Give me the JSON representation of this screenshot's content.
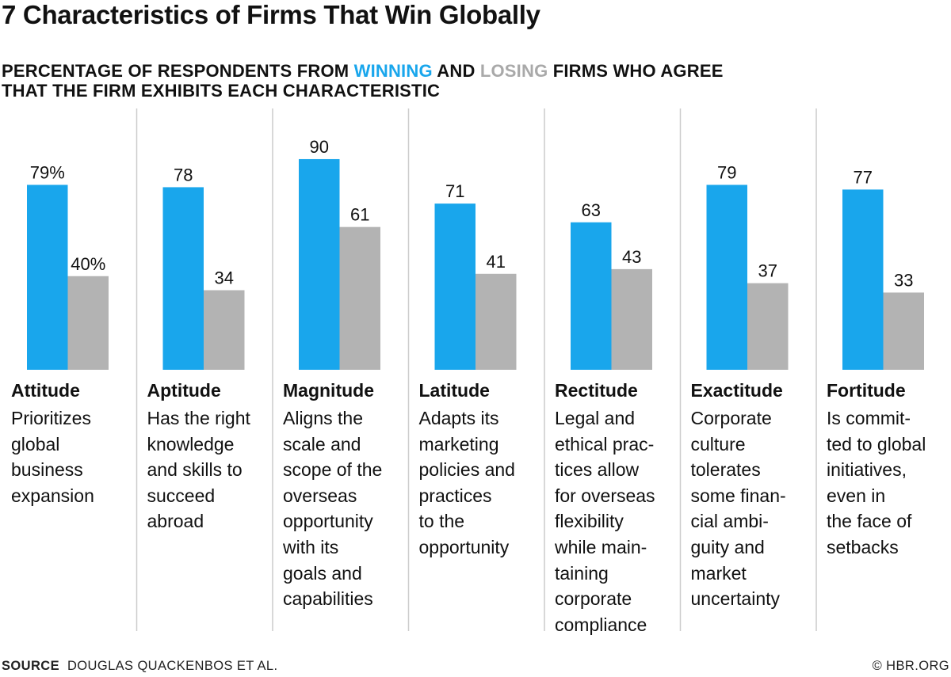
{
  "title": "7 Characteristics of Firms That Win Globally",
  "subtitle": {
    "part1": "PERCENTAGE OF RESPONDENTS FROM ",
    "winning": "WINNING",
    "part2": " AND ",
    "losing": "LOSING",
    "part3": " FIRMS WHO AGREE",
    "line2": "THAT THE FIRM EXHIBITS EACH CHARACTERISTIC"
  },
  "colors": {
    "winning": "#19a6ec",
    "losing": "#b3b3b3",
    "divider": "#cccccc"
  },
  "chart_data": {
    "type": "bar",
    "categories": [
      "Attitude",
      "Aptitude",
      "Magnitude",
      "Latitude",
      "Rectitude",
      "Exactitude",
      "Fortitude"
    ],
    "series": [
      {
        "name": "WINNING",
        "values": [
          79,
          78,
          90,
          71,
          63,
          79,
          77
        ]
      },
      {
        "name": "LOSING",
        "values": [
          40,
          34,
          61,
          41,
          43,
          37,
          33
        ]
      }
    ],
    "value_labels": {
      "winning": [
        "79%",
        "78",
        "90",
        "71",
        "63",
        "79",
        "77"
      ],
      "losing": [
        "40%",
        "34",
        "61",
        "41",
        "43",
        "37",
        "33"
      ]
    },
    "descriptions": [
      "Prioritizes\nglobal\nbusiness\nexpansion",
      "Has the right\nknowledge\nand skills to\nsucceed\nabroad",
      "Aligns the\nscale and\nscope of the\noverseas\nopportunity\nwith its\ngoals and\ncapabilities",
      "Adapts its\nmarketing\npolicies and\npractices\nto the\nopportunity",
      "Legal and\nethical prac-\ntices allow\nfor overseas\nflexibility\nwhile main-\ntaining\ncorporate\ncompliance",
      "Corporate\nculture\ntolerates\nsome finan-\ncial ambi-\nguity and\nmarket\nuncertainty",
      "Is commit-\nted to global\ninitiatives,\neven in\nthe face of\nsetbacks"
    ],
    "ylim": [
      0,
      100
    ],
    "xlabel": "",
    "ylabel": "",
    "grid": false
  },
  "footer": {
    "source_label": "SOURCE",
    "source_text": "DOUGLAS QUACKENBOS ET AL.",
    "copyright": "© HBR.ORG"
  }
}
